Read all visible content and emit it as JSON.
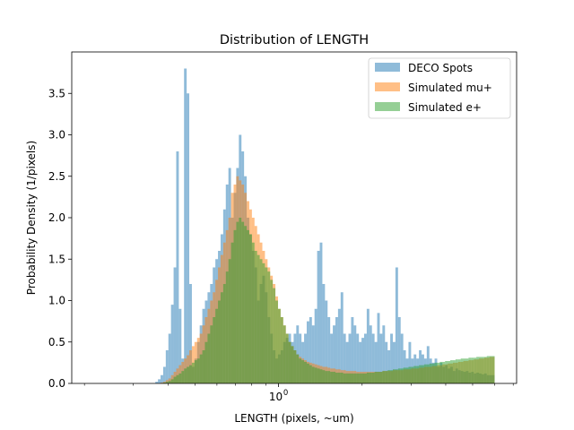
{
  "chart_data": {
    "type": "histogram",
    "title": "Distribution of LENGTH",
    "xlabel": "LENGTH (pixels, ~um)",
    "ylabel": "Probability Density (1/pixels)",
    "xscale": "log",
    "xlim": [
      0.18,
      7.2
    ],
    "ylim": [
      0,
      4.0
    ],
    "yticks": [
      0.0,
      0.5,
      1.0,
      1.5,
      2.0,
      2.5,
      3.0,
      3.5
    ],
    "ytick_labels": [
      "0.0",
      "0.5",
      "1.0",
      "1.5",
      "2.0",
      "2.5",
      "3.0",
      "3.5"
    ],
    "xtick_major": [
      {
        "value": 1.0,
        "label": "10",
        "exp": "0"
      }
    ],
    "legend_position": "upper right",
    "bin_range": [
      0.36,
      6.0
    ],
    "bin_count": 130,
    "series": [
      {
        "name": "DECO Spots",
        "color": "#1f77b4",
        "density": [
          0.02,
          0.05,
          0.1,
          0.2,
          0.4,
          0.6,
          0.95,
          1.4,
          2.8,
          0.9,
          0.3,
          3.8,
          3.5,
          1.2,
          0.2,
          0.3,
          0.5,
          0.7,
          0.9,
          1.0,
          1.1,
          1.2,
          1.4,
          1.5,
          1.6,
          1.8,
          2.1,
          2.4,
          2.6,
          2.0,
          2.3,
          2.6,
          3.0,
          2.8,
          2.5,
          2.0,
          1.8,
          1.6,
          1.4,
          1.0,
          1.2,
          1.3,
          1.1,
          0.8,
          0.6,
          0.4,
          0.3,
          0.35,
          0.4,
          0.5,
          0.55,
          0.6,
          0.5,
          0.6,
          0.7,
          0.6,
          0.5,
          0.6,
          0.75,
          0.8,
          0.7,
          0.9,
          1.6,
          1.7,
          1.2,
          1.0,
          0.8,
          0.6,
          0.7,
          0.8,
          0.9,
          1.1,
          0.6,
          0.5,
          0.6,
          0.8,
          0.7,
          0.6,
          0.5,
          0.55,
          0.6,
          0.9,
          0.7,
          0.6,
          0.5,
          0.85,
          0.6,
          0.7,
          0.5,
          0.4,
          0.6,
          0.5,
          1.4,
          0.8,
          0.6,
          0.4,
          0.3,
          0.5,
          0.3,
          0.35,
          0.3,
          0.4,
          0.35,
          0.3,
          0.45,
          0.3,
          0.25,
          0.3,
          0.2,
          0.25,
          0.2,
          0.22,
          0.18,
          0.2,
          0.15,
          0.18,
          0.16,
          0.15,
          0.14,
          0.15,
          0.13,
          0.14,
          0.12,
          0.13,
          0.12,
          0.11,
          0.12,
          0.1,
          0.1,
          0.1
        ]
      },
      {
        "name": "Simulated mu+",
        "color": "#ff7f0e",
        "density": [
          0.0,
          0.0,
          0.01,
          0.02,
          0.04,
          0.06,
          0.1,
          0.14,
          0.18,
          0.22,
          0.26,
          0.3,
          0.34,
          0.4,
          0.45,
          0.5,
          0.55,
          0.6,
          0.7,
          0.8,
          0.9,
          1.0,
          1.1,
          1.25,
          1.4,
          1.55,
          1.7,
          1.85,
          2.0,
          2.3,
          2.4,
          2.5,
          2.45,
          2.4,
          2.3,
          2.2,
          2.1,
          2.0,
          1.9,
          1.8,
          1.7,
          1.6,
          1.5,
          1.4,
          1.3,
          1.2,
          1.05,
          0.9,
          0.8,
          0.7,
          0.6,
          0.5,
          0.45,
          0.4,
          0.35,
          0.32,
          0.3,
          0.28,
          0.26,
          0.25,
          0.24,
          0.23,
          0.22,
          0.21,
          0.2,
          0.2,
          0.19,
          0.18,
          0.18,
          0.17,
          0.17,
          0.16,
          0.16,
          0.15,
          0.15,
          0.15,
          0.15,
          0.14,
          0.14,
          0.14,
          0.14,
          0.14,
          0.14,
          0.14,
          0.14,
          0.14,
          0.14,
          0.15,
          0.15,
          0.15,
          0.15,
          0.16,
          0.16,
          0.16,
          0.16,
          0.17,
          0.17,
          0.17,
          0.18,
          0.18,
          0.18,
          0.19,
          0.19,
          0.2,
          0.2,
          0.2,
          0.21,
          0.21,
          0.22,
          0.22,
          0.23,
          0.23,
          0.24,
          0.24,
          0.25,
          0.25,
          0.26,
          0.26,
          0.27,
          0.27,
          0.28,
          0.28,
          0.29,
          0.29,
          0.3,
          0.3,
          0.31,
          0.31,
          0.32,
          0.32
        ]
      },
      {
        "name": "Simulated e+",
        "color": "#2ca02c",
        "density": [
          0.0,
          0.0,
          0.0,
          0.01,
          0.02,
          0.03,
          0.05,
          0.08,
          0.1,
          0.12,
          0.15,
          0.18,
          0.2,
          0.22,
          0.25,
          0.28,
          0.3,
          0.35,
          0.4,
          0.5,
          0.6,
          0.7,
          0.8,
          0.9,
          1.0,
          1.1,
          1.2,
          1.35,
          1.5,
          1.7,
          1.85,
          1.95,
          2.0,
          1.95,
          1.9,
          1.85,
          1.8,
          1.7,
          1.6,
          1.55,
          1.5,
          1.45,
          1.4,
          1.35,
          1.25,
          1.15,
          1.0,
          0.9,
          0.8,
          0.7,
          0.6,
          0.5,
          0.45,
          0.4,
          0.35,
          0.3,
          0.28,
          0.26,
          0.24,
          0.22,
          0.2,
          0.19,
          0.18,
          0.17,
          0.16,
          0.15,
          0.15,
          0.14,
          0.14,
          0.13,
          0.13,
          0.13,
          0.12,
          0.12,
          0.12,
          0.12,
          0.12,
          0.12,
          0.12,
          0.12,
          0.12,
          0.13,
          0.13,
          0.13,
          0.14,
          0.14,
          0.14,
          0.15,
          0.15,
          0.16,
          0.16,
          0.17,
          0.17,
          0.18,
          0.18,
          0.19,
          0.19,
          0.2,
          0.2,
          0.21,
          0.21,
          0.22,
          0.22,
          0.23,
          0.23,
          0.24,
          0.24,
          0.25,
          0.25,
          0.26,
          0.26,
          0.27,
          0.27,
          0.28,
          0.28,
          0.29,
          0.29,
          0.3,
          0.3,
          0.3,
          0.31,
          0.31,
          0.31,
          0.32,
          0.32,
          0.32,
          0.32,
          0.33,
          0.33,
          0.33
        ]
      }
    ]
  }
}
